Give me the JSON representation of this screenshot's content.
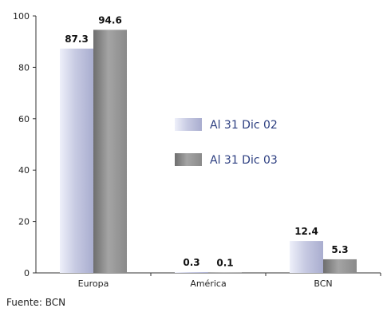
{
  "chart_data": {
    "type": "bar",
    "categories": [
      "Europa",
      "América",
      "BCN"
    ],
    "series": [
      {
        "name": "Al 31 Dic 02",
        "values": [
          87.3,
          0.3,
          12.4
        ],
        "color": "#c8cbe3"
      },
      {
        "name": "Al 31 Dic 03",
        "values": [
          94.6,
          0.1,
          5.3
        ],
        "color": "#9c9c9c"
      }
    ],
    "ylim": [
      0,
      100
    ],
    "yticks": [
      0,
      20,
      40,
      60,
      80,
      100
    ],
    "grid": false,
    "legend_position": "center-right",
    "show_data_labels": true
  },
  "source": "Fuente: BCN"
}
